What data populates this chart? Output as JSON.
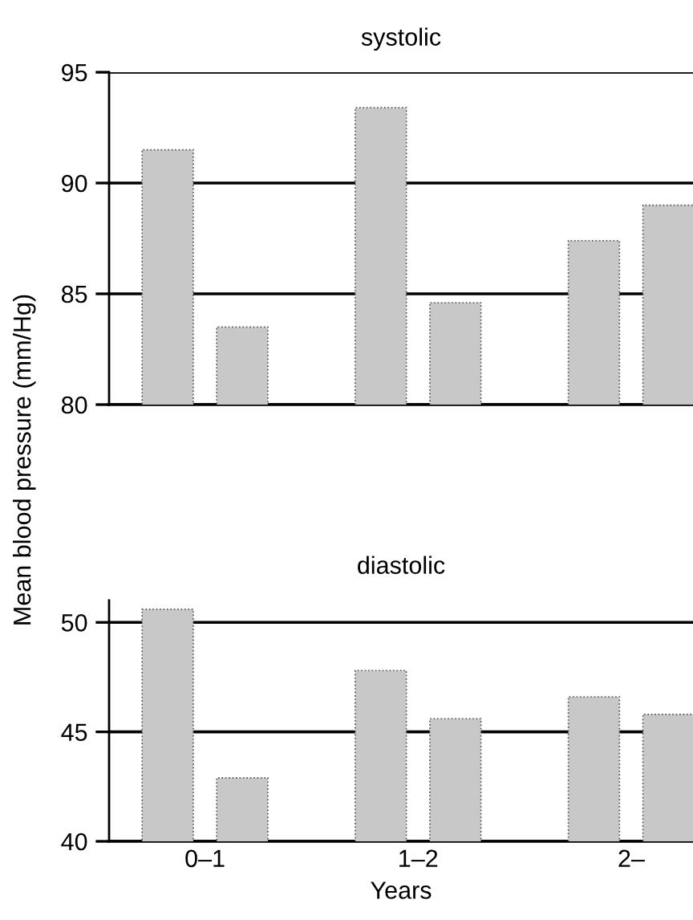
{
  "chart_data": [
    {
      "type": "bar",
      "title": "systolic",
      "ylabel": "Mean blood pressure (mm/Hg)",
      "categories": [
        null,
        null,
        null
      ],
      "series": [
        {
          "color": "#c8c8c8",
          "values": [
            91.5,
            93.4,
            87.4
          ]
        },
        {
          "color": "#c8c8c8",
          "values": [
            83.5,
            84.6,
            89.0
          ]
        }
      ],
      "ylim": [
        80,
        95
      ],
      "yticks": [
        80,
        85,
        90,
        95
      ],
      "grid": "y",
      "tick_labels": "y"
    },
    {
      "type": "bar",
      "title": "diastolic",
      "xlabel": "Years",
      "categories": [
        "0–1",
        "1–2",
        "2–"
      ],
      "series": [
        {
          "color": "#c8c8c8",
          "values": [
            50.6,
            47.8,
            46.6
          ]
        },
        {
          "color": "#c8c8c8",
          "values": [
            42.9,
            45.6,
            45.8
          ]
        }
      ],
      "ylim": [
        40,
        51
      ],
      "yticks": [
        40,
        45,
        50
      ],
      "grid": "y"
    }
  ]
}
